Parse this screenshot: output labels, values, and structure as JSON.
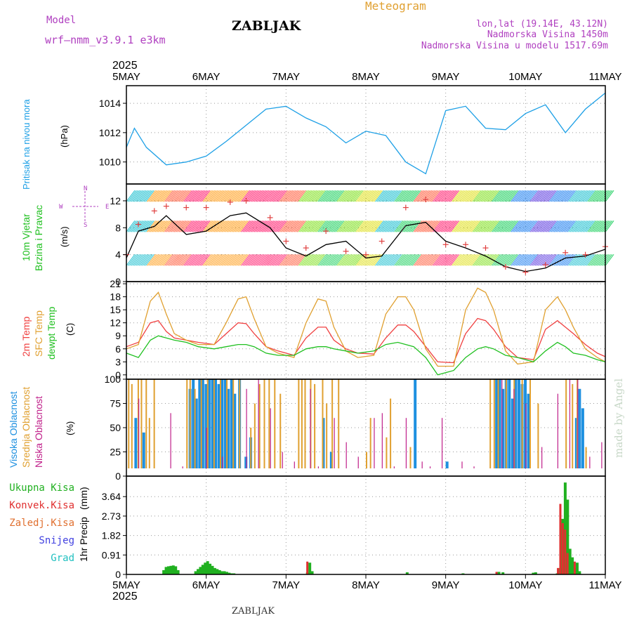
{
  "header": {
    "model_label": "Model",
    "model_name": "wrf—nmm_v3.9.1 e3km",
    "station": "ZABLJAK",
    "product": "Meteogram",
    "coords": "lon,lat (19.14E, 43.12N)",
    "altitude": "Nadmorska Visina 1450m",
    "model_altitude": "Nadmorska Visina u modelu 1517.69m",
    "year_top": "2025",
    "year_bottom": "2025",
    "footer_station": "ZABLJAK",
    "watermark": "made by Angel"
  },
  "colors": {
    "pressure": "#1ea0e6",
    "temp2m": "#f04040",
    "sfc": "#e0a030",
    "dewpt": "#20c020",
    "high_cloud": "#1e90e0",
    "mid_cloud": "#e0a030",
    "low_cloud": "#c0208a",
    "precip_total": "#20b020",
    "precip_conv": "#e03030",
    "snow": "#4040e0",
    "grad": "#20c0c0",
    "wind_line": "#000000",
    "gust": "#e04040"
  },
  "chart_data": [
    {
      "type": "line",
      "panel": "pressure",
      "ylabel_1": "Pritisak na nivou mora",
      "ylabel_2": "(hPa)",
      "ylim": [
        1008.5,
        1015.2
      ],
      "yticks": [
        1010,
        1012,
        1014
      ],
      "x_days": [
        0,
        0.1,
        0.25,
        0.5,
        0.75,
        1.0,
        1.25,
        1.5,
        1.75,
        2.0,
        2.25,
        2.5,
        2.75,
        3.0,
        3.25,
        3.5,
        3.75,
        4.0,
        4.25,
        4.5,
        4.75,
        5.0,
        5.25,
        5.5,
        5.75,
        6.0
      ],
      "values": [
        1011.0,
        1012.3,
        1011.0,
        1009.8,
        1010.0,
        1010.4,
        1011.4,
        1012.5,
        1013.6,
        1013.8,
        1013.0,
        1012.4,
        1011.3,
        1012.1,
        1011.8,
        1010.0,
        1009.2,
        1013.5,
        1013.8,
        1012.3,
        1012.2,
        1013.3,
        1013.9,
        1012.0,
        1013.6,
        1014.7
      ],
      "series_name": "Pritisak"
    },
    {
      "type": "line",
      "panel": "wind",
      "ylabel_1": "10m Vjetar",
      "ylabel_2": "Brzina i Pravac",
      "ylabel_3": "(m/s)",
      "ylim": [
        0,
        14.5
      ],
      "yticks": [
        0,
        4,
        8,
        12
      ],
      "compass": {
        "n": "N",
        "s": "S",
        "e": "E",
        "w": "W"
      },
      "x_days": [
        0,
        0.15,
        0.35,
        0.5,
        0.75,
        1.0,
        1.3,
        1.5,
        1.8,
        2.0,
        2.25,
        2.5,
        2.75,
        3.0,
        3.2,
        3.5,
        3.75,
        4.0,
        4.25,
        4.5,
        4.75,
        5.0,
        5.25,
        5.5,
        5.75,
        6.0
      ],
      "wind_speed": [
        3.5,
        7.5,
        8.2,
        9.8,
        7.0,
        7.5,
        9.8,
        10.2,
        8.0,
        5.0,
        3.8,
        5.5,
        6.0,
        3.5,
        3.8,
        8.3,
        8.8,
        6.0,
        5.0,
        3.8,
        2.2,
        1.5,
        2.0,
        3.5,
        3.8,
        4.8
      ],
      "gust": [
        4.0,
        8.5,
        10.5,
        11.2,
        11.0,
        11.0,
        11.8,
        12.0,
        9.5,
        6.0,
        5.0,
        7.5,
        4.5,
        4.0,
        6.0,
        11.0,
        12.2,
        5.5,
        5.5,
        5.0,
        2.2,
        1.4,
        2.5,
        4.3,
        4.0,
        5.2
      ]
    },
    {
      "type": "line",
      "panel": "temperature",
      "ylabel_1": "2m Temp",
      "ylabel_2": "SFC Temp",
      "ylabel_3": "dewpt Temp",
      "ylabel_4": "(C)",
      "ylim": [
        -1,
        21.5
      ],
      "yticks": [
        0,
        3,
        6,
        9,
        12,
        15,
        18,
        21
      ],
      "x_days": [
        0,
        0.15,
        0.3,
        0.4,
        0.5,
        0.6,
        0.75,
        0.9,
        1.1,
        1.25,
        1.4,
        1.5,
        1.6,
        1.75,
        1.9,
        2.1,
        2.25,
        2.4,
        2.5,
        2.6,
        2.75,
        2.9,
        3.1,
        3.25,
        3.4,
        3.5,
        3.6,
        3.75,
        3.9,
        4.1,
        4.25,
        4.4,
        4.5,
        4.6,
        4.75,
        4.9,
        5.1,
        5.25,
        5.4,
        5.5,
        5.6,
        5.75,
        5.9,
        6.0
      ],
      "series": [
        {
          "name": "2m Temp",
          "values": [
            6.5,
            7.5,
            12.0,
            12.5,
            10.0,
            8.5,
            8.0,
            7.5,
            7.0,
            9.5,
            12.0,
            11.8,
            9.5,
            6.5,
            5.5,
            4.5,
            8.5,
            11.0,
            11.0,
            8.0,
            6.0,
            5.0,
            4.8,
            8.5,
            11.5,
            11.5,
            10.0,
            6.5,
            3.0,
            2.8,
            9.5,
            13.0,
            12.5,
            10.5,
            6.5,
            4.0,
            3.5,
            10.5,
            12.5,
            11.0,
            9.5,
            7.0,
            5.0,
            4.2
          ]
        },
        {
          "name": "SFC Temp",
          "values": [
            6.0,
            7.0,
            17.0,
            19.0,
            14.0,
            9.5,
            8.0,
            7.0,
            7.0,
            12.0,
            17.5,
            18.0,
            13.0,
            6.5,
            5.0,
            4.0,
            12.0,
            17.5,
            17.0,
            11.0,
            5.5,
            4.0,
            4.5,
            14.0,
            18.0,
            18.0,
            15.0,
            6.0,
            2.0,
            2.0,
            15.0,
            20.0,
            19.0,
            15.0,
            5.5,
            2.5,
            3.0,
            15.0,
            18.0,
            15.0,
            11.0,
            6.0,
            4.0,
            3.0
          ]
        },
        {
          "name": "dewpt Temp",
          "values": [
            5.0,
            4.0,
            8.0,
            9.0,
            8.5,
            8.0,
            7.5,
            6.5,
            6.0,
            6.5,
            7.0,
            7.0,
            6.5,
            5.0,
            4.5,
            4.5,
            6.0,
            6.5,
            6.5,
            6.0,
            5.5,
            5.0,
            5.5,
            7.0,
            7.5,
            7.0,
            6.5,
            4.0,
            0.0,
            1.0,
            4.0,
            6.0,
            6.5,
            6.0,
            4.5,
            4.0,
            3.0,
            5.5,
            7.5,
            6.5,
            5.0,
            4.5,
            3.5,
            3.0
          ]
        }
      ]
    },
    {
      "type": "bar",
      "panel": "clouds",
      "ylabel_1": "Visoka Oblacnost",
      "ylabel_2": "Srednja Oblacnost",
      "ylabel_3": "Niska Oblacnost",
      "ylabel_4": "(%)",
      "ylim": [
        0,
        100
      ],
      "yticks": [
        0,
        25,
        50,
        75,
        100
      ],
      "high_days": [
        0.1,
        0.2,
        0.78,
        0.82,
        0.86,
        0.9,
        0.94,
        0.98,
        1.02,
        1.06,
        1.1,
        1.14,
        1.18,
        1.22,
        1.26,
        1.3,
        1.34,
        1.4,
        1.48,
        1.54,
        2.45,
        2.55,
        3.6,
        4.0,
        4.62,
        4.66,
        4.7,
        4.74,
        4.78,
        4.82,
        4.86,
        4.9,
        4.94,
        4.98,
        5.02,
        5.62,
        5.66,
        5.7
      ],
      "high_values": [
        60,
        45,
        90,
        100,
        80,
        100,
        100,
        95,
        100,
        100,
        100,
        95,
        100,
        100,
        90,
        100,
        85,
        100,
        20,
        40,
        60,
        25,
        100,
        15,
        100,
        100,
        90,
        100,
        100,
        80,
        100,
        100,
        95,
        100,
        85,
        60,
        90,
        70
      ],
      "mid_days": [
        0.02,
        0.06,
        0.14,
        0.18,
        0.24,
        0.28,
        0.34,
        0.75,
        0.79,
        0.85,
        0.93,
        1.01,
        1.09,
        1.17,
        1.25,
        1.33,
        1.41,
        1.55,
        1.6,
        1.66,
        1.72,
        1.78,
        1.85,
        1.92,
        2.15,
        2.19,
        2.23,
        2.3,
        2.35,
        2.45,
        2.5,
        2.57,
        2.65,
        3.0,
        3.05,
        3.25,
        3.3,
        3.55,
        4.55,
        4.6,
        4.65,
        4.75,
        4.85,
        4.95,
        5.05,
        5.15,
        5.5,
        5.58,
        5.64,
        5.75
      ],
      "mid_values": [
        100,
        95,
        100,
        100,
        100,
        60,
        100,
        100,
        100,
        90,
        100,
        100,
        100,
        100,
        100,
        100,
        100,
        50,
        75,
        95,
        100,
        100,
        100,
        85,
        100,
        100,
        100,
        100,
        95,
        100,
        75,
        100,
        100,
        25,
        60,
        40,
        80,
        30,
        100,
        100,
        100,
        100,
        100,
        100,
        100,
        75,
        100,
        95,
        100,
        30
      ],
      "low_days": [
        0.15,
        0.3,
        0.55,
        0.7,
        1.0,
        1.2,
        1.5,
        1.65,
        1.8,
        1.95,
        2.1,
        2.3,
        2.4,
        2.6,
        2.75,
        2.9,
        3.1,
        3.2,
        3.35,
        3.5,
        3.7,
        3.8,
        3.95,
        4.1,
        4.2,
        4.35,
        4.5,
        4.7,
        4.85,
        5.0,
        5.2,
        5.4,
        5.55,
        5.65,
        5.8,
        5.95
      ],
      "low_values": [
        80,
        5,
        65,
        10,
        50,
        20,
        90,
        100,
        70,
        25,
        15,
        90,
        10,
        60,
        35,
        20,
        60,
        65,
        10,
        60,
        15,
        10,
        60,
        5,
        15,
        10,
        5,
        100,
        90,
        75,
        30,
        85,
        100,
        100,
        20,
        35
      ]
    },
    {
      "type": "bar",
      "panel": "precipitation",
      "ylabel_1": "1hr Precip",
      "ylabel_2": "(mm)",
      "ylim": [
        0,
        4.6
      ],
      "ytick_labels": [
        "0",
        "0.91",
        "1.82",
        "2.73",
        "3.64"
      ],
      "legend": [
        "Ukupna Kisa",
        "Konvek.Kisa",
        "Zaledj.Kisa",
        "Snijeg",
        "Grad"
      ],
      "total_days": [
        0.45,
        0.48,
        0.51,
        0.54,
        0.57,
        0.6,
        0.63,
        0.85,
        0.88,
        0.91,
        0.94,
        0.97,
        1.0,
        1.03,
        1.06,
        1.09,
        1.12,
        1.15,
        1.18,
        1.21,
        1.24,
        1.27,
        1.3,
        1.33,
        2.25,
        2.28,
        2.31,
        3.5,
        4.2,
        4.65,
        4.7,
        5.08,
        5.11,
        5.38,
        5.42,
        5.45,
        5.48,
        5.51,
        5.54,
        5.57,
        5.6,
        5.63,
        5.66
      ],
      "total_values": [
        0.2,
        0.35,
        0.38,
        0.4,
        0.42,
        0.38,
        0.2,
        0.15,
        0.25,
        0.35,
        0.45,
        0.55,
        0.62,
        0.5,
        0.4,
        0.3,
        0.25,
        0.2,
        0.15,
        0.15,
        0.12,
        0.08,
        0.05,
        0.05,
        0.1,
        0.55,
        0.15,
        0.1,
        0.05,
        0.12,
        0.1,
        0.08,
        0.1,
        0.05,
        0.3,
        2.6,
        4.3,
        3.5,
        1.2,
        0.8,
        0.3,
        0.55,
        0.15
      ],
      "conv_days": [
        2.28,
        4.65,
        5.42,
        5.45,
        5.48,
        5.51,
        5.54,
        5.63
      ],
      "conv_values": [
        0.6,
        0.12,
        0.3,
        3.3,
        2.4,
        2.1,
        1.0,
        0.6
      ]
    }
  ],
  "x_axis": {
    "labels": [
      "5MAY",
      "6MAY",
      "7MAY",
      "8MAY",
      "9MAY",
      "10MAY",
      "11MAY"
    ]
  }
}
